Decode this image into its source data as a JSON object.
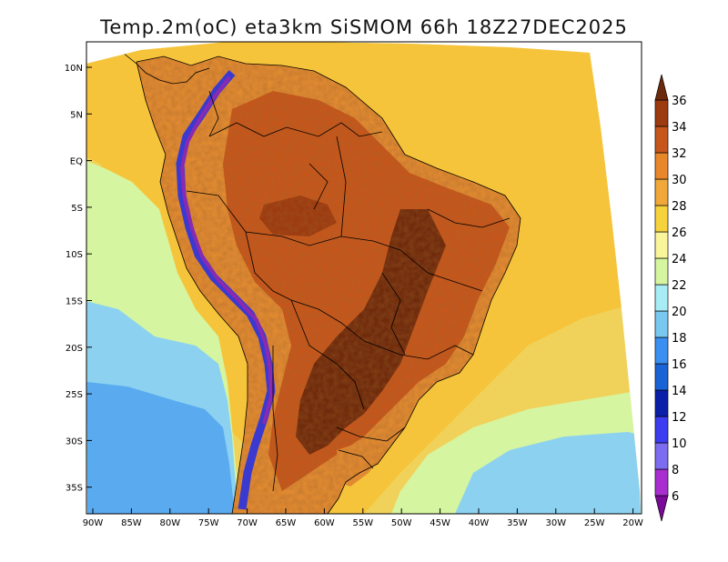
{
  "title": "Temp.2m(oC) eta3km SiSMOM 66h 18Z27DEC2025",
  "lat_labels": [
    "10N",
    "5N",
    "EQ",
    "5S",
    "10S",
    "15S",
    "20S",
    "25S",
    "30S",
    "35S"
  ],
  "lon_labels": [
    "90W",
    "85W",
    "80W",
    "75W",
    "70W",
    "65W",
    "60W",
    "55W",
    "50W",
    "45W",
    "40W",
    "35W",
    "30W",
    "25W",
    "20W"
  ],
  "colorbar": {
    "labels": [
      "6",
      "8",
      "10",
      "12",
      "14",
      "16",
      "18",
      "20",
      "22",
      "24",
      "26",
      "28",
      "30",
      "32",
      "34",
      "36"
    ],
    "colors": [
      "#7b0a9a",
      "#a82ecf",
      "#7b6cf0",
      "#3c3cf0",
      "#0a1fa8",
      "#1a63d6",
      "#3a8ff0",
      "#78c8f0",
      "#a8ecf5",
      "#d6f5a0",
      "#faf59a",
      "#f6d23c",
      "#f0a83a",
      "#e8872a",
      "#c6561c",
      "#9c3a10",
      "#6e2a0c"
    ],
    "extends": "both"
  },
  "colors": {
    "ocean_warm": "#f6c43a",
    "ocean_mid": "#f0d25a",
    "ocean_cool": "#d6f5a0",
    "ocean_cold": "#8cd2f0",
    "ocean_colder": "#5aaaf0",
    "land_hot": "#c6561c",
    "land_hotter": "#9c3a10",
    "land_hottest": "#6e2a0c",
    "land_warm": "#e08a32",
    "andes_cold": "#3a3ad0",
    "andes_coldest": "#8a2ab0"
  }
}
